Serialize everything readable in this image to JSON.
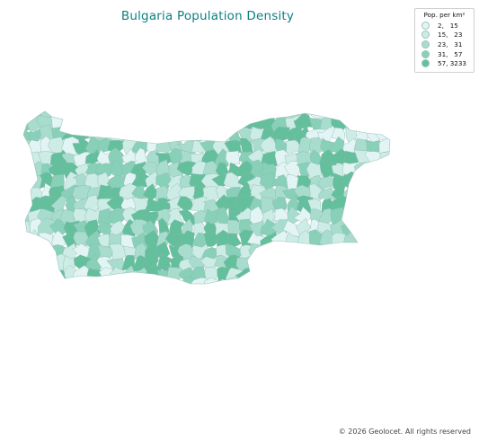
{
  "map": {
    "title": "Bulgaria Population Density",
    "legend": {
      "title": "Pop. per km²",
      "items": [
        {
          "label": "2,   15",
          "color": "#e2f4f3"
        },
        {
          "label": "15,   23",
          "color": "#cdece6"
        },
        {
          "label": "23,   31",
          "color": "#a8dccd"
        },
        {
          "label": "31,   57",
          "color": "#88d0b8"
        },
        {
          "label": "57, 3233",
          "color": "#64bf9c"
        }
      ]
    },
    "region_outline_color": "#8cb8b0"
  },
  "footer": {
    "copyright": "© 2026 Geolocet. All rights reserved"
  }
}
